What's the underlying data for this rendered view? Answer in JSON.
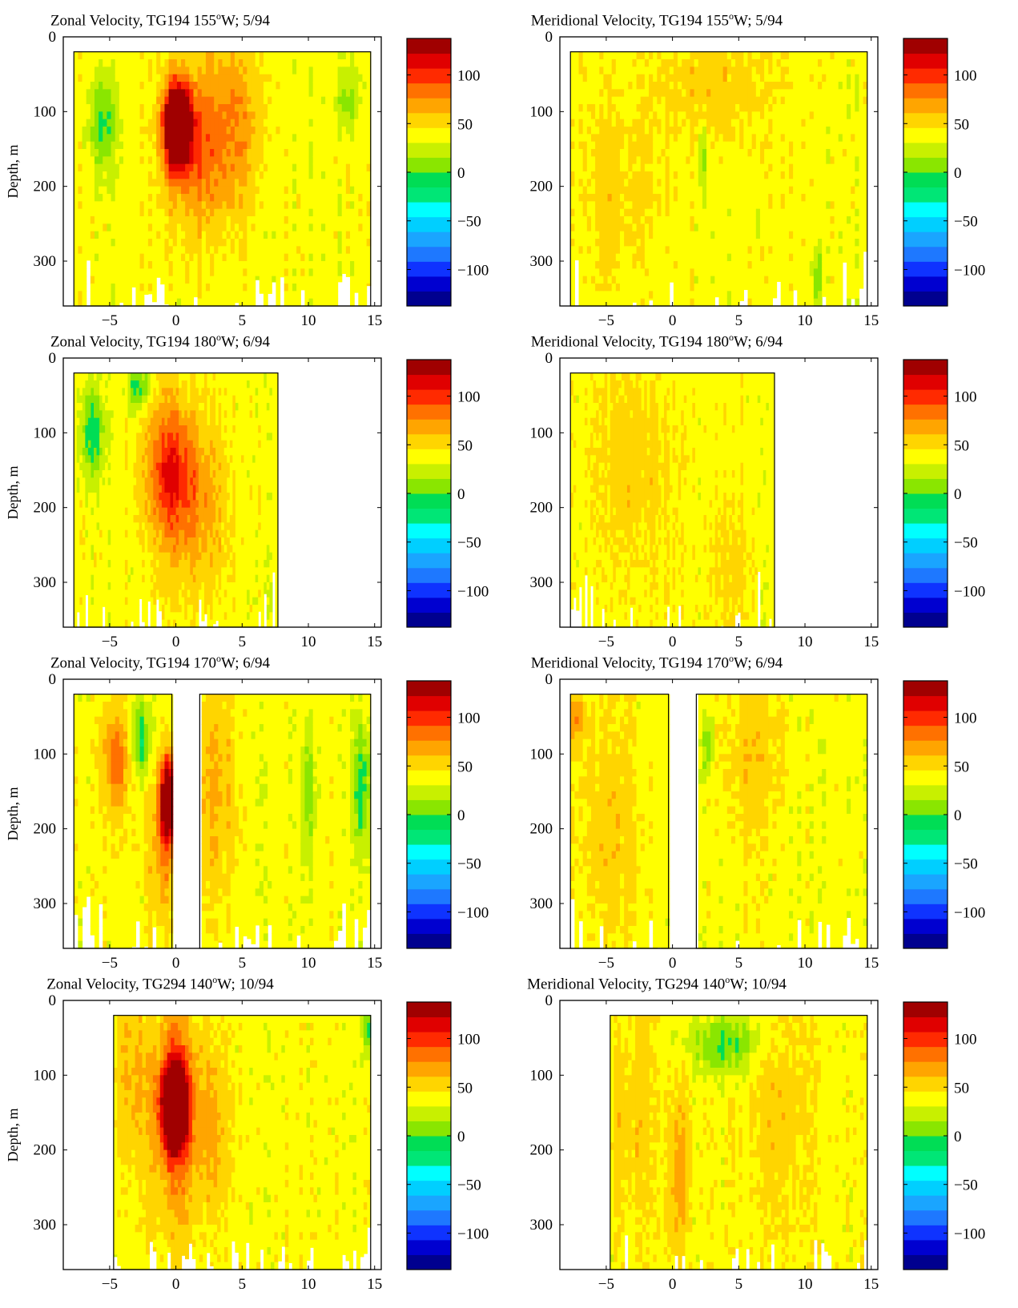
{
  "colorbar": {
    "min": -137.5,
    "max": 137.5,
    "step": 12.5,
    "ticks": [
      -100,
      -50,
      0,
      50,
      100
    ],
    "tick_labels": [
      "−100",
      "−50",
      "0",
      "50",
      "100"
    ],
    "colors": [
      "#00008f",
      "#0000d0",
      "#0f33ff",
      "#1e78ff",
      "#1aa5ff",
      "#00cfff",
      "#00ffff",
      "#00e676",
      "#00dd55",
      "#8ae600",
      "#c8f000",
      "#ffff00",
      "#ffd500",
      "#ffa500",
      "#ff7100",
      "#ff2a00",
      "#e00000",
      "#a00000"
    ]
  },
  "panels": [
    {
      "title_prefix": "Zonal Velocity, TG194 155",
      "title_sup": "o",
      "title_suffix": "W; 5/94",
      "ylabel": "Depth, m"
    },
    {
      "title_prefix": "Meridional Velocity, TG194 155",
      "title_sup": "o",
      "title_suffix": "W; 5/94",
      "ylabel": ""
    },
    {
      "title_prefix": "Zonal Velocity, TG194 180",
      "title_sup": "o",
      "title_suffix": "W; 6/94",
      "ylabel": "Depth, m"
    },
    {
      "title_prefix": "Meridional Velocity, TG194 180",
      "title_sup": "o",
      "title_suffix": "W; 6/94",
      "ylabel": ""
    },
    {
      "title_prefix": "Zonal Velocity, TG194 170",
      "title_sup": "o",
      "title_suffix": "W; 6/94",
      "ylabel": "Depth, m"
    },
    {
      "title_prefix": "Meridional Velocity, TG194 170",
      "title_sup": "o",
      "title_suffix": "W; 6/94",
      "ylabel": ""
    },
    {
      "title_prefix": "Zonal Velocity, TG294 140",
      "title_sup": "o",
      "title_suffix": "W; 10/94",
      "ylabel": "Depth, m"
    },
    {
      "title_prefix": "Meridional Velocity, TG294 140",
      "title_sup": "o",
      "title_suffix": "W; 10/94",
      "ylabel": ""
    }
  ],
  "chart_data": [
    {
      "type": "heatmap",
      "title": "Zonal Velocity, TG194 155°W; 5/94",
      "ylabel": "Depth, m",
      "xlim": [
        -8.5,
        15.5
      ],
      "ylim": [
        0,
        360
      ],
      "xticks": [
        -5,
        0,
        5,
        10,
        15
      ],
      "yticks": [
        0,
        100,
        200,
        300
      ],
      "data_extent": [
        -7.7,
        14.7
      ],
      "top_depth": 20,
      "gaps": [],
      "features": [
        {
          "x": 0.1,
          "z": 120,
          "v": 130,
          "sx": 1.0,
          "sz": 55
        },
        {
          "x": 1.5,
          "z": 150,
          "v": 35,
          "sx": 2.2,
          "sz": 110
        },
        {
          "x": 4.5,
          "z": 120,
          "v": 30,
          "sx": 2.0,
          "sz": 120
        },
        {
          "x": -5.5,
          "z": 120,
          "v": -35,
          "sx": 1.0,
          "sz": 60
        },
        {
          "x": 13,
          "z": 80,
          "v": -25,
          "sx": 1.0,
          "sz": 40
        }
      ]
    },
    {
      "type": "heatmap",
      "title": "Meridional Velocity, TG194 155°W; 5/94",
      "ylabel": "",
      "xlim": [
        -8.5,
        15.5
      ],
      "ylim": [
        0,
        360
      ],
      "xticks": [
        -5,
        0,
        5,
        10,
        15
      ],
      "yticks": [
        0,
        100,
        200,
        300
      ],
      "data_extent": [
        -7.7,
        14.7
      ],
      "top_depth": 20,
      "gaps": [],
      "features": [
        {
          "x": 3,
          "z": 60,
          "v": 15,
          "sx": 4,
          "sz": 80
        },
        {
          "x": -4,
          "z": 200,
          "v": 12,
          "sx": 3,
          "sz": 120
        },
        {
          "x": 2.3,
          "z": 160,
          "v": -30,
          "sx": 0.3,
          "sz": 40
        },
        {
          "x": 11,
          "z": 320,
          "v": -30,
          "sx": 0.4,
          "sz": 40
        }
      ]
    },
    {
      "type": "heatmap",
      "title": "Zonal Velocity, TG194 180°W; 6/94",
      "ylabel": "Depth, m",
      "xlim": [
        -8.5,
        15.5
      ],
      "ylim": [
        0,
        360
      ],
      "xticks": [
        -5,
        0,
        5,
        10,
        15
      ],
      "yticks": [
        0,
        100,
        200,
        300
      ],
      "data_extent": [
        -7.7,
        7.7
      ],
      "top_depth": 20,
      "gaps": [],
      "features": [
        {
          "x": -0.5,
          "z": 150,
          "v": 48,
          "sx": 1.8,
          "sz": 90
        },
        {
          "x": 1.5,
          "z": 200,
          "v": 25,
          "sx": 2.5,
          "sz": 120
        },
        {
          "x": -6.3,
          "z": 100,
          "v": -40,
          "sx": 0.9,
          "sz": 60
        },
        {
          "x": -2.8,
          "z": 40,
          "v": -38,
          "sx": 0.8,
          "sz": 30
        }
      ]
    },
    {
      "type": "heatmap",
      "title": "Meridional Velocity, TG194 180°W; 6/94",
      "ylabel": "",
      "xlim": [
        -8.5,
        15.5
      ],
      "ylim": [
        0,
        360
      ],
      "xticks": [
        -5,
        0,
        5,
        10,
        15
      ],
      "yticks": [
        0,
        100,
        200,
        300
      ],
      "data_extent": [
        -7.7,
        7.7
      ],
      "top_depth": 20,
      "gaps": [],
      "features": [
        {
          "x": -3,
          "z": 150,
          "v": 14,
          "sx": 3,
          "sz": 150
        },
        {
          "x": 4.5,
          "z": 280,
          "v": 12,
          "sx": 1.5,
          "sz": 100
        }
      ]
    },
    {
      "type": "heatmap",
      "title": "Zonal Velocity, TG194 170°W; 6/94",
      "ylabel": "Depth, m",
      "xlim": [
        -8.5,
        15.5
      ],
      "ylim": [
        0,
        360
      ],
      "xticks": [
        -5,
        0,
        5,
        10,
        15
      ],
      "yticks": [
        0,
        100,
        200,
        300
      ],
      "data_extent": [
        -7.7,
        14.7
      ],
      "top_depth": 20,
      "gaps": [
        [
          -0.3,
          1.8
        ]
      ],
      "features": [
        {
          "x": -0.6,
          "z": 160,
          "v": 95,
          "sx": 0.6,
          "sz": 55
        },
        {
          "x": -4.5,
          "z": 110,
          "v": 38,
          "sx": 1.0,
          "sz": 70
        },
        {
          "x": -1.0,
          "z": 220,
          "v": 30,
          "sx": 1.0,
          "sz": 90
        },
        {
          "x": -2.6,
          "z": 80,
          "v": -40,
          "sx": 0.7,
          "sz": 50
        },
        {
          "x": 14,
          "z": 150,
          "v": -40,
          "sx": 0.6,
          "sz": 80
        },
        {
          "x": 10,
          "z": 150,
          "v": -25,
          "sx": 0.5,
          "sz": 80
        },
        {
          "x": 3,
          "z": 150,
          "v": 22,
          "sx": 1.5,
          "sz": 150
        }
      ]
    },
    {
      "type": "heatmap",
      "title": "Meridional Velocity, TG194 170°W; 6/94",
      "ylabel": "",
      "xlim": [
        -8.5,
        15.5
      ],
      "ylim": [
        0,
        360
      ],
      "xticks": [
        -5,
        0,
        5,
        10,
        15
      ],
      "yticks": [
        0,
        100,
        200,
        300
      ],
      "data_extent": [
        -7.7,
        14.7
      ],
      "top_depth": 20,
      "gaps": [
        [
          -0.3,
          1.8
        ]
      ],
      "features": [
        {
          "x": -7.2,
          "z": 50,
          "v": 30,
          "sx": 0.6,
          "sz": 40
        },
        {
          "x": -4.5,
          "z": 200,
          "v": 14,
          "sx": 2.5,
          "sz": 150
        },
        {
          "x": 6,
          "z": 100,
          "v": 14,
          "sx": 2.5,
          "sz": 100
        },
        {
          "x": 2.7,
          "z": 90,
          "v": -30,
          "sx": 0.4,
          "sz": 40
        }
      ]
    },
    {
      "type": "heatmap",
      "title": "Zonal Velocity, TG294 140°W; 10/94",
      "ylabel": "Depth, m",
      "xlim": [
        -8.5,
        15.5
      ],
      "ylim": [
        0,
        360
      ],
      "xticks": [
        -5,
        0,
        5,
        10,
        15
      ],
      "yticks": [
        0,
        100,
        200,
        300
      ],
      "data_extent": [
        -4.7,
        14.7
      ],
      "top_depth": 20,
      "gaps": [],
      "features": [
        {
          "x": -0.1,
          "z": 140,
          "v": 130,
          "sx": 0.9,
          "sz": 55
        },
        {
          "x": 0,
          "z": 150,
          "v": 40,
          "sx": 2.0,
          "sz": 150
        },
        {
          "x": -3.5,
          "z": 100,
          "v": 20,
          "sx": 1.2,
          "sz": 120
        },
        {
          "x": 3,
          "z": 180,
          "v": 18,
          "sx": 1.2,
          "sz": 120
        },
        {
          "x": 14.5,
          "z": 40,
          "v": -40,
          "sx": 0.4,
          "sz": 30
        }
      ]
    },
    {
      "type": "heatmap",
      "title": "Meridional Velocity, TG294 140°W; 10/94",
      "ylabel": "",
      "xlim": [
        -8.5,
        15.5
      ],
      "ylim": [
        0,
        360
      ],
      "xticks": [
        -5,
        0,
        5,
        10,
        15
      ],
      "yticks": [
        0,
        100,
        200,
        300
      ],
      "data_extent": [
        -4.7,
        14.7
      ],
      "top_depth": 20,
      "gaps": [],
      "features": [
        {
          "x": 4,
          "z": 60,
          "v": -35,
          "sx": 2.5,
          "sz": 40
        },
        {
          "x": 0.5,
          "z": 230,
          "v": 28,
          "sx": 0.8,
          "sz": 120
        },
        {
          "x": -3,
          "z": 150,
          "v": 15,
          "sx": 1.8,
          "sz": 150
        },
        {
          "x": 8,
          "z": 150,
          "v": 14,
          "sx": 2.5,
          "sz": 150
        }
      ]
    }
  ]
}
